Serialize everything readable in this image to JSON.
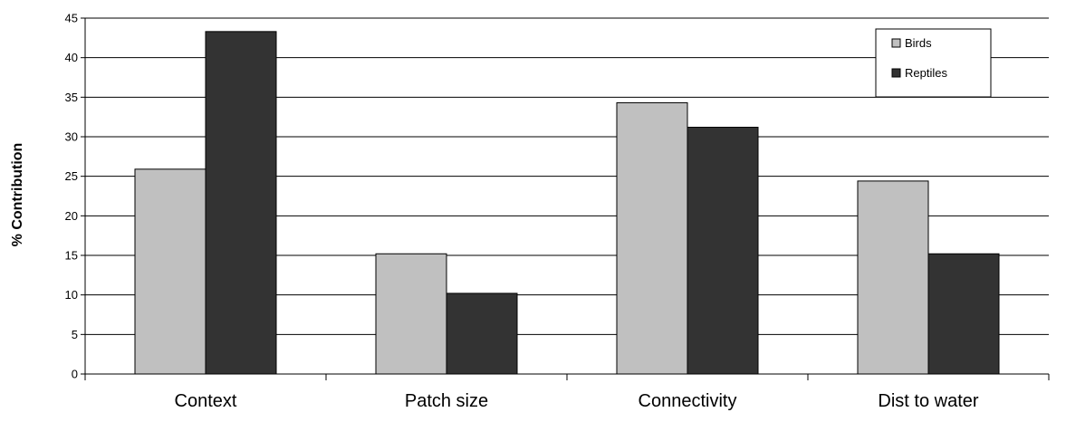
{
  "chart_data": {
    "type": "bar",
    "title": "",
    "xlabel": "",
    "ylabel": "% Contribution",
    "categories": [
      "Context",
      "Patch size",
      "Connectivity",
      "Dist to water"
    ],
    "series": [
      {
        "name": "Birds",
        "values": [
          25.9,
          15.2,
          34.3,
          24.4
        ],
        "color": "#c0c0c0"
      },
      {
        "name": "Reptiles",
        "values": [
          43.3,
          10.2,
          31.2,
          15.2
        ],
        "color": "#333333"
      }
    ],
    "ylim": [
      0,
      45
    ],
    "yticks": [
      "0",
      "5",
      "10",
      "15",
      "20",
      "25",
      "30",
      "35",
      "40",
      "45"
    ],
    "grid": true,
    "legend_position": "top-right"
  }
}
